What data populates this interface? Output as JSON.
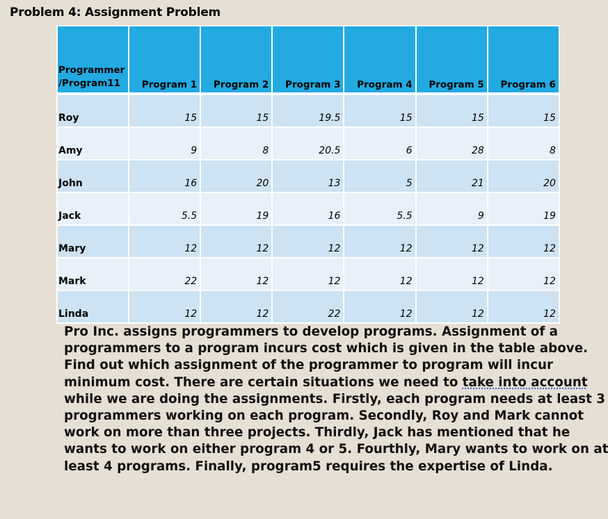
{
  "title": "Problem 4: Assignment Problem",
  "table": {
    "corner_line1": "Programmer",
    "corner_line2": "/Program11",
    "columns": [
      "Program 1",
      "Program 2",
      "Program 3",
      "Program 4",
      "Program 5",
      "Program 6"
    ],
    "rows": [
      {
        "name": "Roy",
        "values": [
          "15",
          "15",
          "19.5",
          "15",
          "15",
          "15"
        ]
      },
      {
        "name": "Amy",
        "values": [
          "9",
          "8",
          "20.5",
          "6",
          "28",
          "8"
        ]
      },
      {
        "name": "John",
        "values": [
          "16",
          "20",
          "13",
          "5",
          "21",
          "20"
        ]
      },
      {
        "name": "Jack",
        "values": [
          "5.5",
          "19",
          "16",
          "5.5",
          "9",
          "19"
        ]
      },
      {
        "name": "Mary",
        "values": [
          "12",
          "12",
          "12",
          "12",
          "12",
          "12"
        ]
      },
      {
        "name": "Mark",
        "values": [
          "22",
          "12",
          "12",
          "12",
          "12",
          "12"
        ]
      },
      {
        "name": "Linda",
        "values": [
          "12",
          "12",
          "22",
          "12",
          "12",
          "12"
        ]
      }
    ]
  },
  "description": {
    "line1": "Pro Inc. assigns programmers to develop programs. Assignment of a",
    "line2": "programmers to a program incurs cost which is given in the table above.",
    "line3": "Find out which assignment of the programmer to program will incur",
    "line4_pre": "minimum cost. There are certain situations we need to ",
    "line4_spell": "take into account",
    "line5": "while we are doing the assignments.  Firstly, each program needs at least 3",
    "line6": "programmers working on each program. Secondly,  Roy and Mark cannot",
    "line7": "work on more than three projects. Thirdly, Jack  has mentioned that he",
    "line8": "wants to work on either program 4 or 5.  Fourthly, Mary wants to work on at",
    "line9": "least 4 programs. Finally, program5 requires the expertise of Linda."
  }
}
